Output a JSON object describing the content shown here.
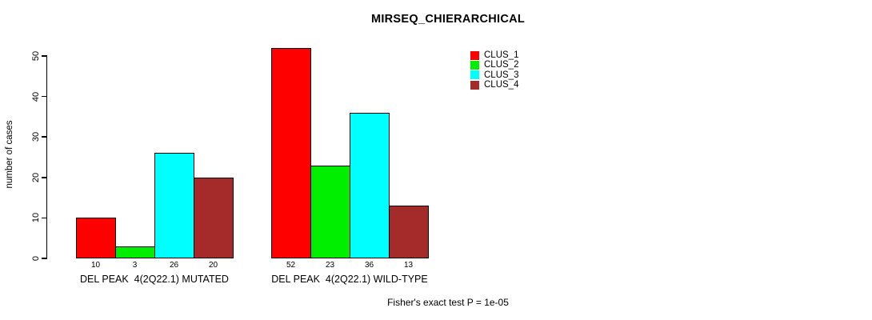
{
  "chart_data": {
    "type": "bar",
    "title": "MIRSEQ_CHIERARCHICAL",
    "ylabel": "number of cases",
    "ylim": [
      0,
      50
    ],
    "yticks": [
      0,
      10,
      20,
      30,
      40,
      50
    ],
    "grid": false,
    "legend_position": "top-right",
    "categories": [
      "DEL PEAK  4(2Q22.1) MUTATED",
      "DEL PEAK  4(2Q22.1) WILD-TYPE"
    ],
    "series": [
      {
        "name": "CLUS_1",
        "color": "#ff0000",
        "values": [
          10,
          52
        ]
      },
      {
        "name": "CLUS_2",
        "color": "#00ee00",
        "values": [
          3,
          23
        ]
      },
      {
        "name": "CLUS_3",
        "color": "#00ffff",
        "values": [
          26,
          36
        ]
      },
      {
        "name": "CLUS_4",
        "color": "#a52a2a",
        "values": [
          20,
          13
        ]
      }
    ],
    "bar_value_labels": [
      [
        "10",
        "3",
        "26",
        "20"
      ],
      [
        "52",
        "23",
        "36",
        "13"
      ]
    ],
    "bar_border_color": "#000000",
    "annotation": "Fisher's exact test P = 1e-05"
  }
}
